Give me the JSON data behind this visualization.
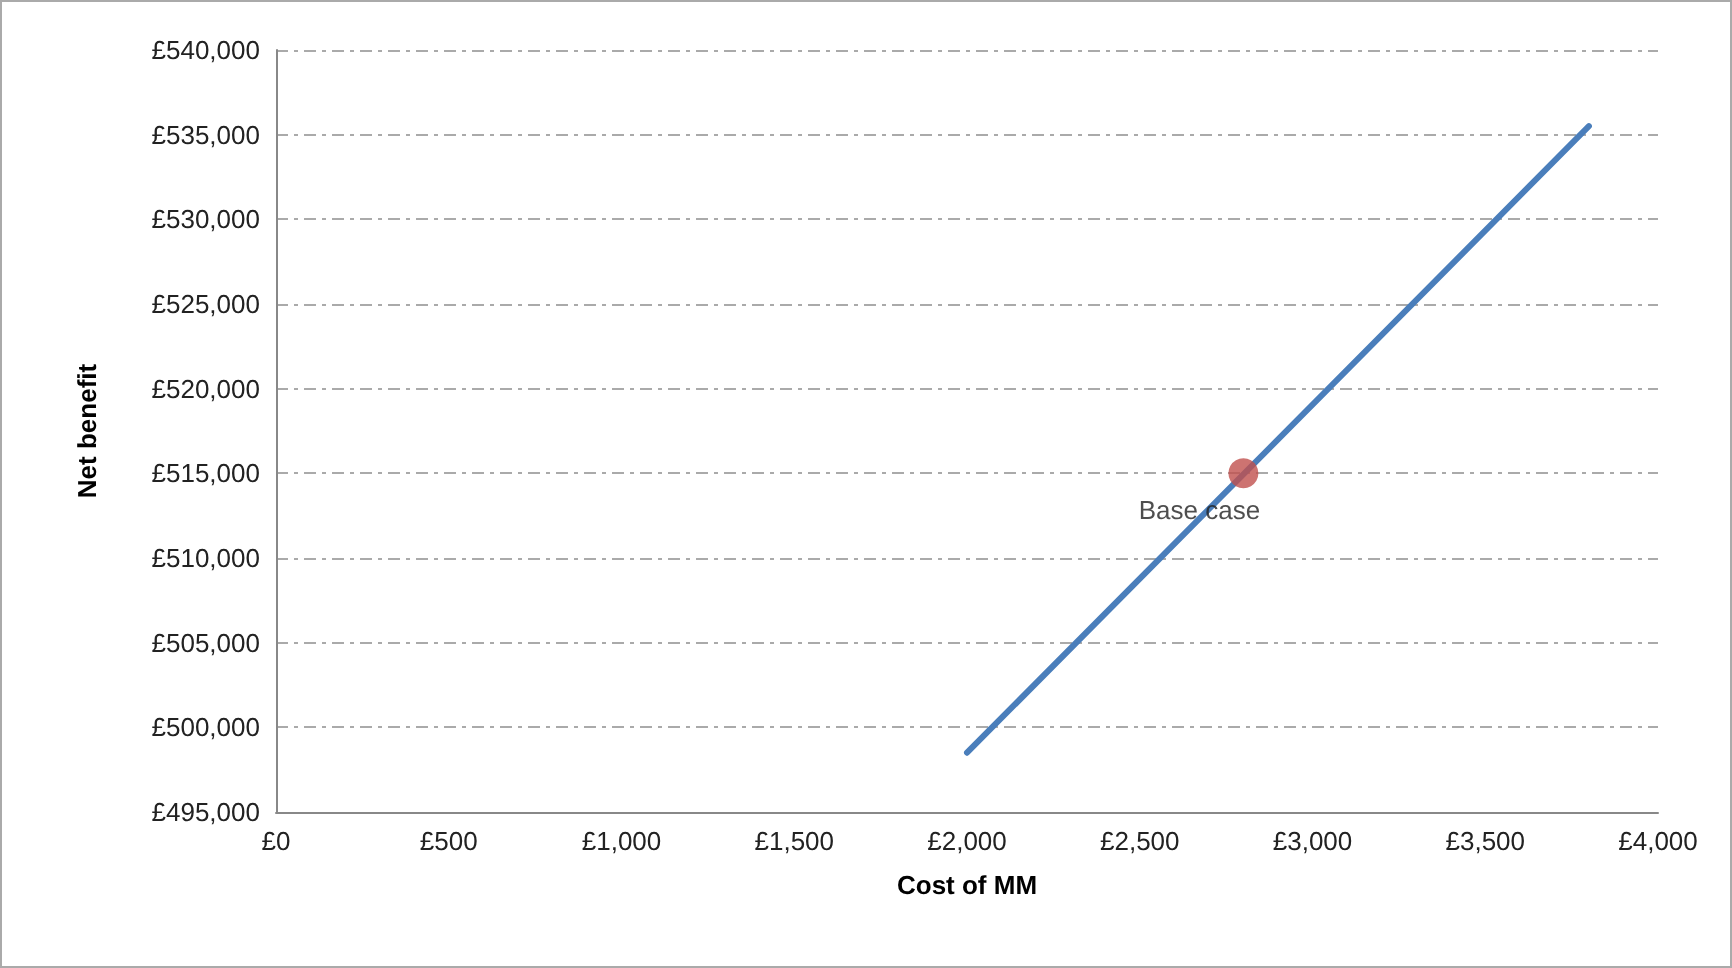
{
  "chart_data": {
    "type": "line",
    "xlabel": "Cost of MM",
    "ylabel": "Net benefit",
    "xlim": [
      0,
      4000
    ],
    "xticks": [
      {
        "value": 0,
        "label": "£0"
      },
      {
        "value": 500,
        "label": "£500"
      },
      {
        "value": 1000,
        "label": "£1,000"
      },
      {
        "value": 1500,
        "label": "£1,500"
      },
      {
        "value": 2000,
        "label": "£2,000"
      },
      {
        "value": 2500,
        "label": "£2,500"
      },
      {
        "value": 3000,
        "label": "£3,000"
      },
      {
        "value": 3500,
        "label": "£3,500"
      },
      {
        "value": 4000,
        "label": "£4,000"
      }
    ],
    "ylim": [
      495000,
      540000
    ],
    "yticks": [
      {
        "value": 495000,
        "label": "£495,000"
      },
      {
        "value": 500000,
        "label": "£500,000"
      },
      {
        "value": 505000,
        "label": "£505,000"
      },
      {
        "value": 510000,
        "label": "£510,000"
      },
      {
        "value": 515000,
        "label": "£515,000"
      },
      {
        "value": 520000,
        "label": "£520,000"
      },
      {
        "value": 525000,
        "label": "£525,000"
      },
      {
        "value": 530000,
        "label": "£530,000"
      },
      {
        "value": 535000,
        "label": "£535,000"
      },
      {
        "value": 540000,
        "label": "£540,000"
      }
    ],
    "grid": "y",
    "series": [
      {
        "color": "#4a7ebb",
        "marker": "none",
        "line_style": "solid",
        "x": [
          2000,
          3800
        ],
        "values": [
          498500,
          535500
        ]
      },
      {
        "type": "scatter",
        "color": "#c0504d",
        "marker": "circle",
        "x": [
          2800
        ],
        "values": [
          515000
        ]
      }
    ],
    "annotations": [
      {
        "text": "Base case",
        "x": 2800,
        "y": 515000
      }
    ]
  }
}
